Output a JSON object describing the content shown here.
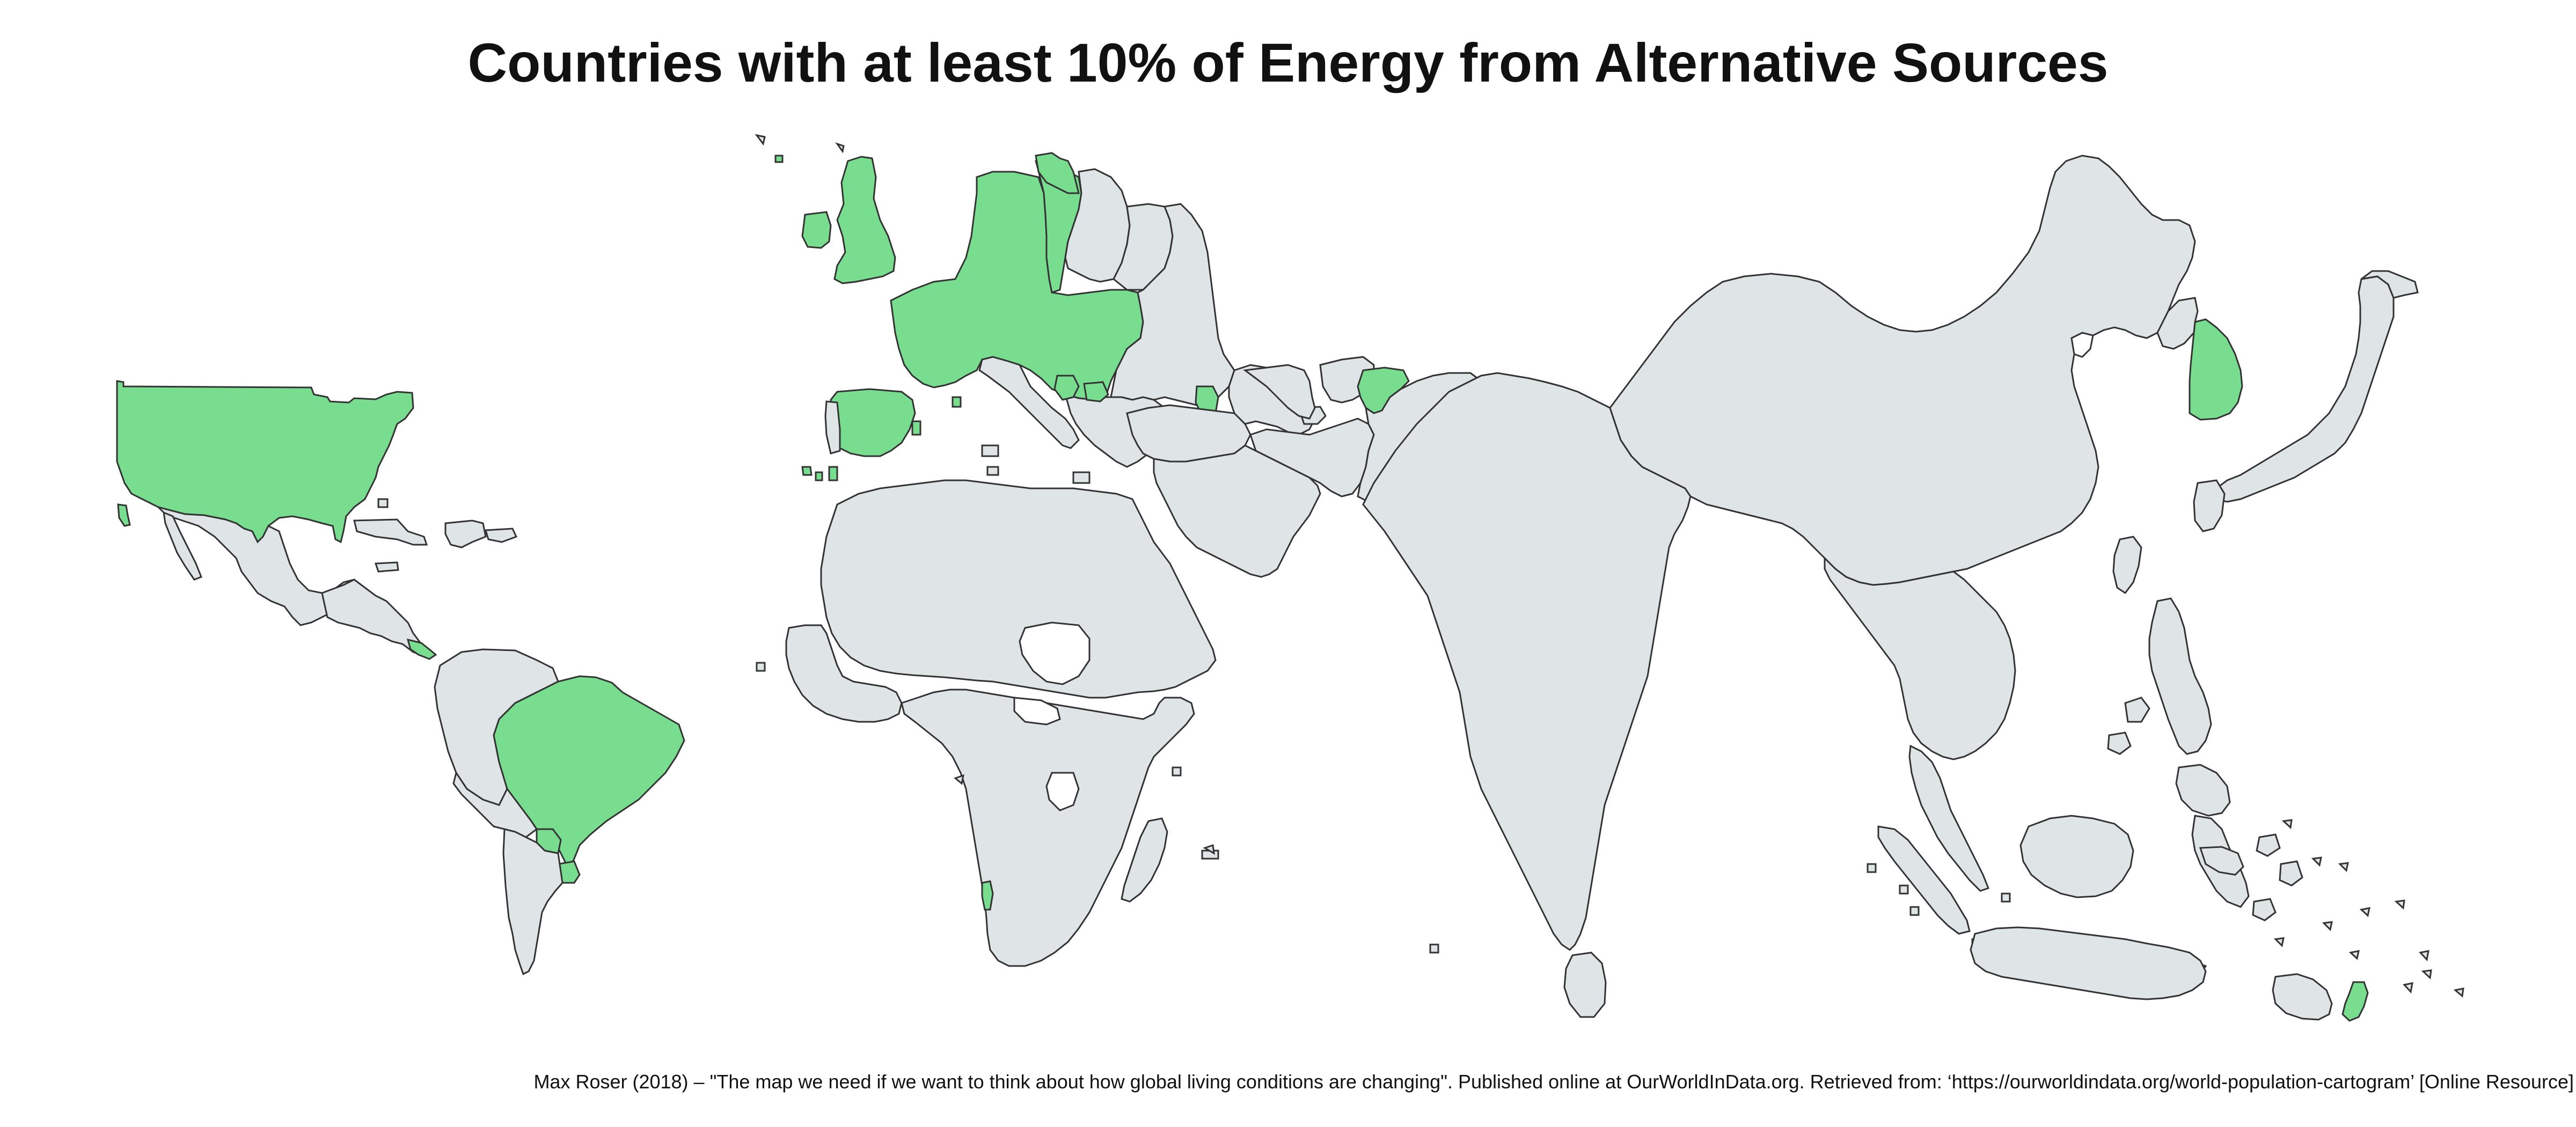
{
  "title": "Countries with at least 10% of Energy from Alternative Sources",
  "source": "Max Roser (2018) – \"The map we need if we want to think about how global living conditions are changing\". Published online at OurWorldInData.org. Retrieved from: ‘https://ourworldindata.org/world-population-cartogram’ [Online Resource]",
  "colors": {
    "highlight": "#79dd90",
    "other": "#dfe4e7",
    "border": "#333333",
    "background": "#ffffff"
  },
  "map_data": {
    "type": "choropleth-cartogram",
    "legend": "none",
    "categories": [
      "at-least-10-percent",
      "below-10-percent"
    ]
  }
}
